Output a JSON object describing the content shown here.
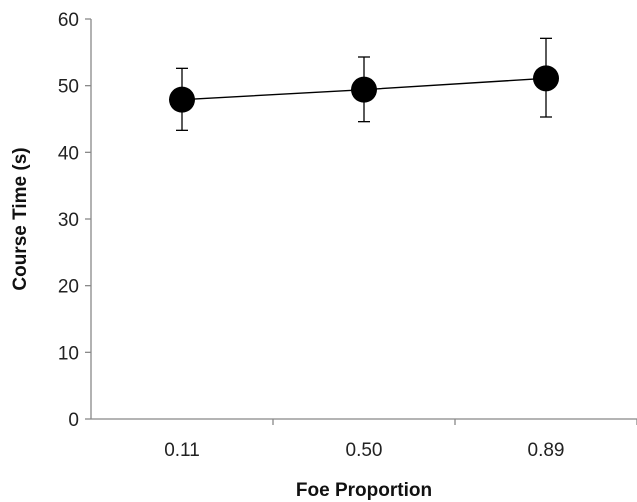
{
  "chart_data": {
    "type": "line",
    "title": "",
    "xlabel": "Foe Proportion",
    "ylabel": "Course Time (s)",
    "categories": [
      "0.11",
      "0.50",
      "0.89"
    ],
    "series": [
      {
        "values": [
          47.9,
          49.4,
          51.1
        ],
        "error_low": [
          43.3,
          44.6,
          45.3
        ],
        "error_high": [
          52.6,
          54.3,
          57.1
        ]
      }
    ],
    "ylim": [
      0,
      60
    ],
    "yticks": [
      "0",
      "10",
      "20",
      "30",
      "40",
      "50",
      "60"
    ],
    "grid": false,
    "legend": "none",
    "colors": {
      "marker": "#000000",
      "line": "#000000",
      "axis": "#888888"
    }
  }
}
